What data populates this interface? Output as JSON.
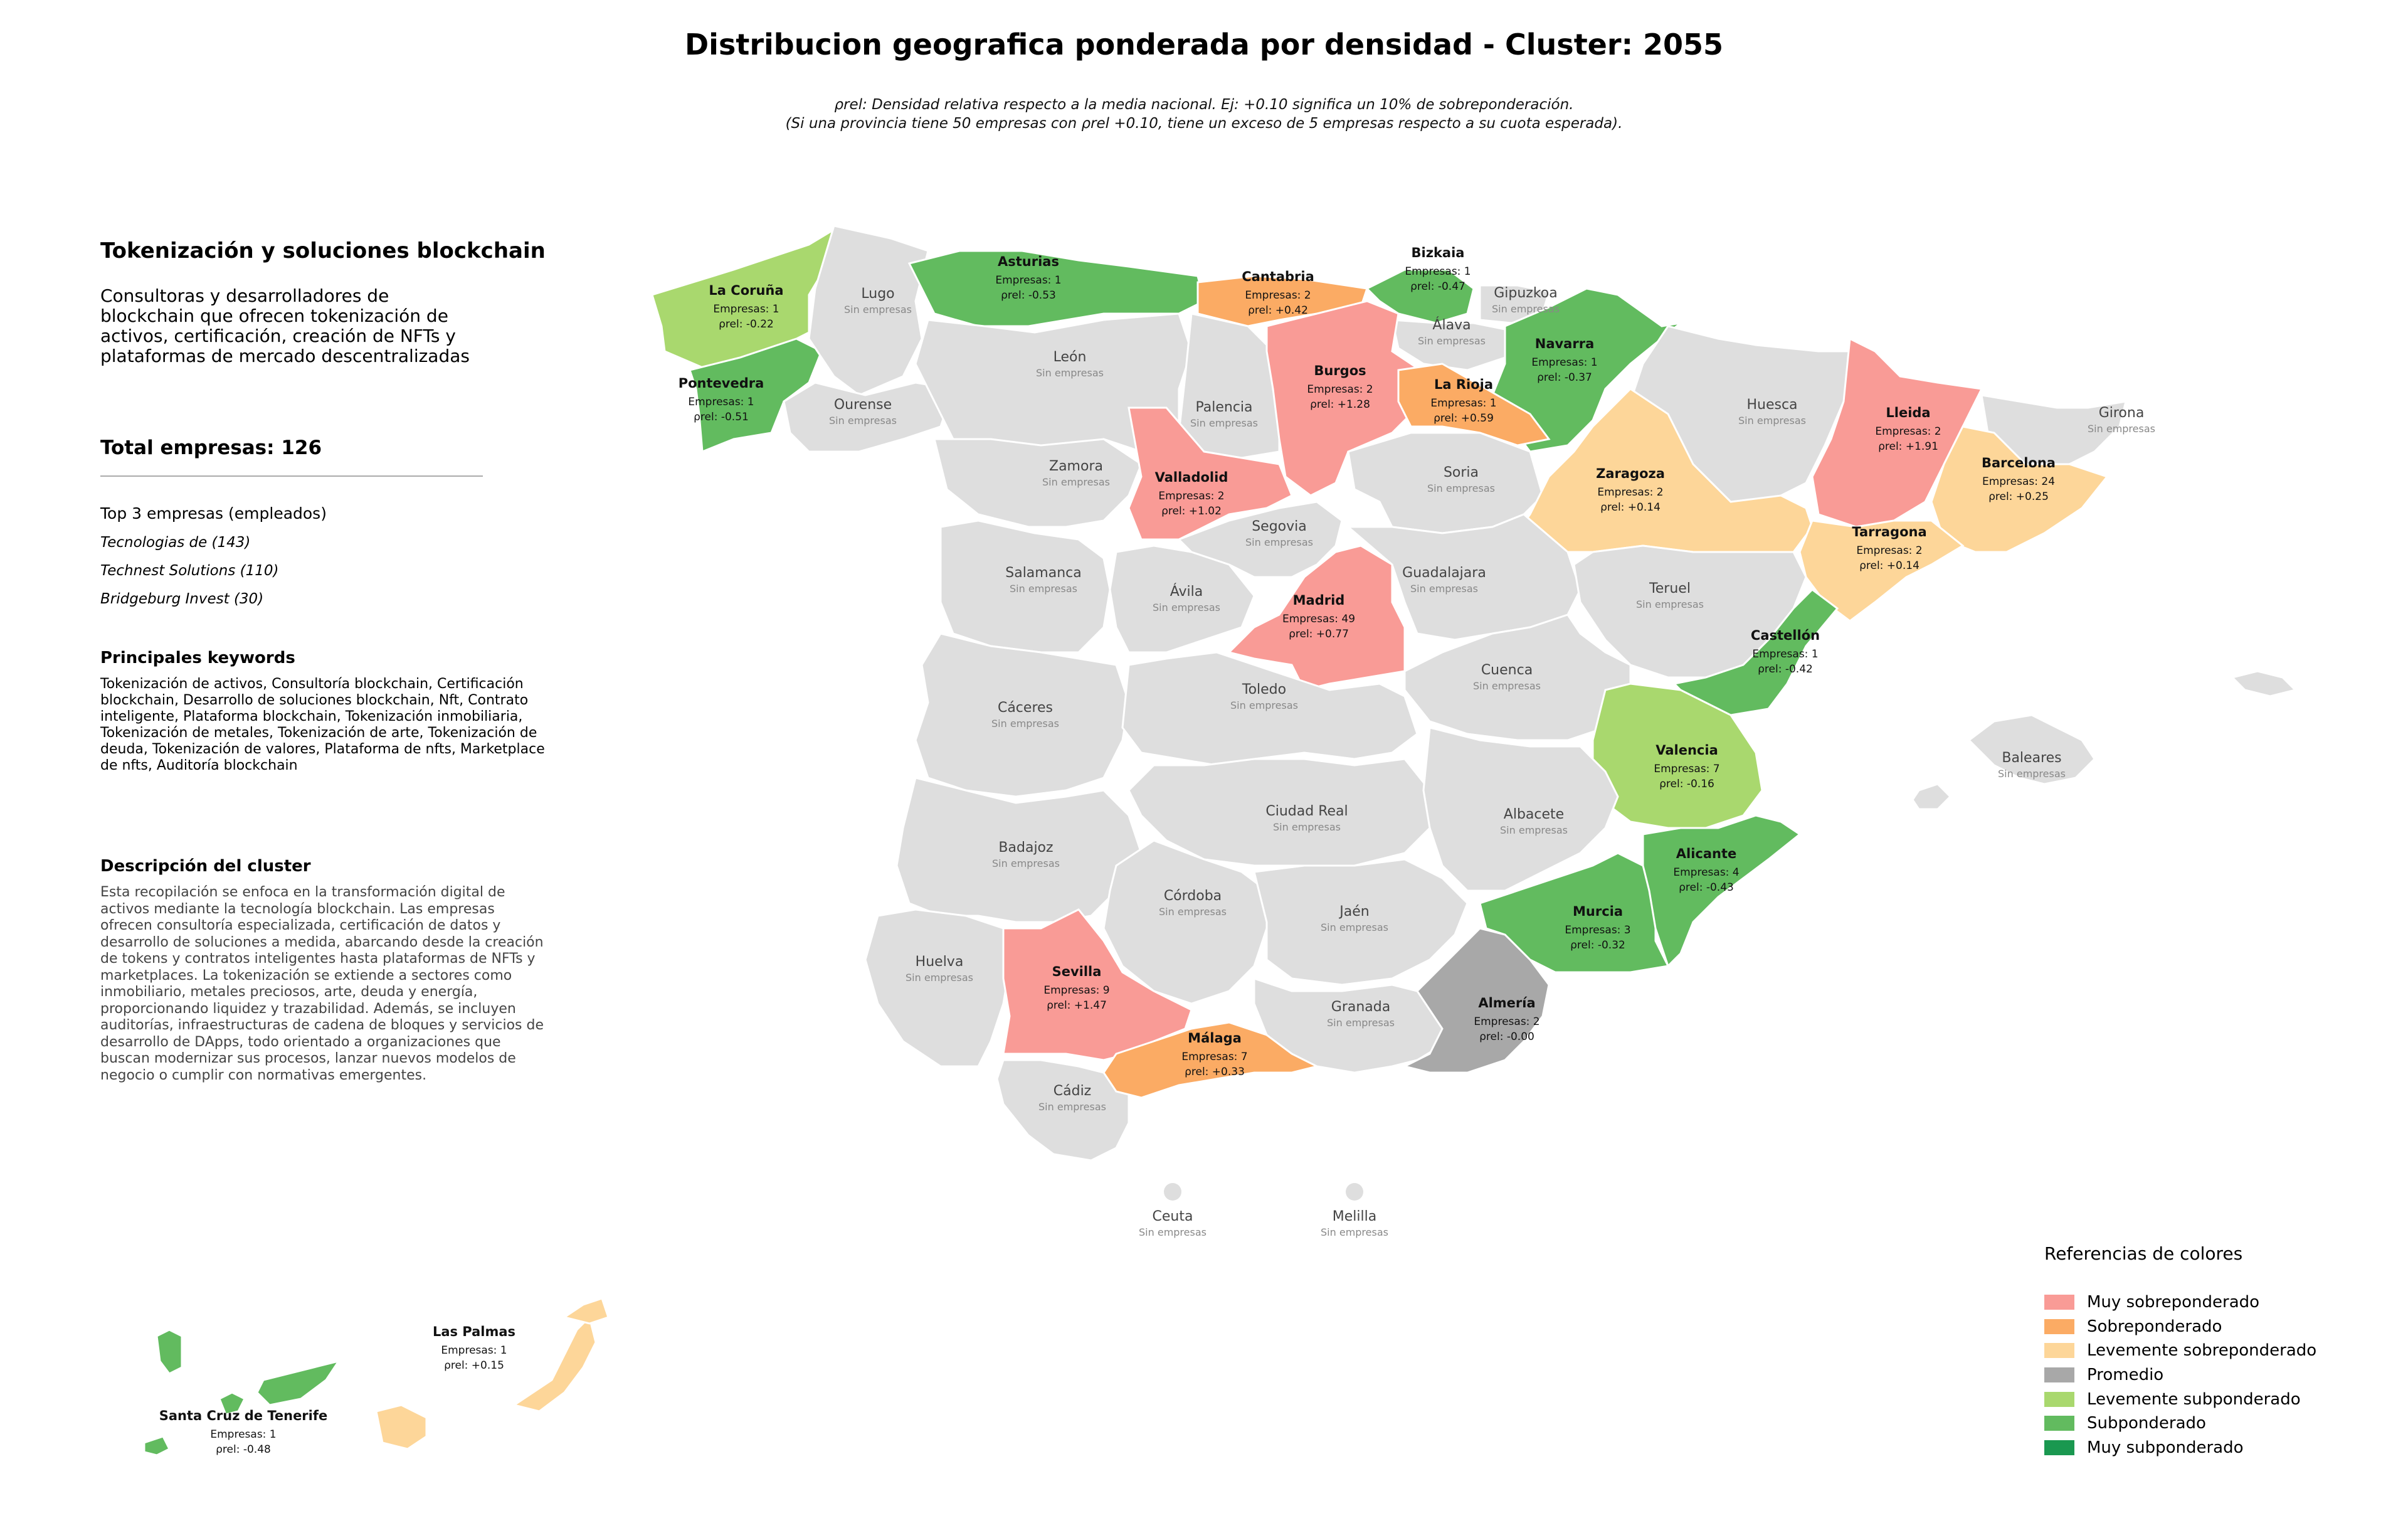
{
  "title": "Distribucion geografica ponderada por densidad - Cluster: 2055",
  "note_line1": "ρrel: Densidad relativa respecto a la media nacional. Ej: +0.10 significa un 10% de sobreponderación.",
  "note_line2": "(Si una provincia tiene 50 empresas con ρrel +0.10, tiene un exceso de 5 empresas respecto a su cuota esperada).",
  "sidebar": {
    "heading": "Tokenización y soluciones blockchain",
    "description": "Consultoras y desarrolladores de blockchain que ofrecen tokenización de activos, certificación, creación de NFTs y plataformas de mercado descentralizadas",
    "total": "Total empresas: 126",
    "top_label": "Top 3 empresas (empleados)",
    "top_companies": [
      "Tecnologias de (143)",
      "Technest Solutions (110)",
      "Bridgeburg Invest (30)"
    ],
    "keywords_title": "Principales keywords",
    "keywords": "Tokenización de activos, Consultoría blockchain, Certificación blockchain, Desarrollo de soluciones blockchain, Nft, Contrato inteligente, Plataforma blockchain, Tokenización inmobiliaria, Tokenización de metales, Tokenización de arte, Tokenización de deuda, Tokenización de valores, Plataforma de nfts, Marketplace de nfts, Auditoría blockchain",
    "desc_title": "Descripción del cluster",
    "desc_text": "Esta recopilación se enfoca en la transformación digital de activos mediante la tecnología blockchain. Las empresas ofrecen consultoría especializada, certificación de datos y desarrollo de soluciones a medida, abarcando desde la creación de tokens y contratos inteligentes hasta plataformas de NFTs y marketplaces. La tokenización se extiende a sectores como inmobiliario, metales preciosos, arte, deuda y energía, proporcionando liquidez y trazabilidad. Además, se incluyen auditorías, infraestructuras de cadena de bloques y servicios de desarrollo de DApps, todo orientado a organizaciones que buscan modernizar sus procesos, lanzar nuevos modelos de negocio o cumplir con normativas emergentes."
  },
  "empty_label": "Sin empresas",
  "empty_provinces": [
    "Lugo",
    "Ourense",
    "León",
    "Palencia",
    "Zamora",
    "Gipuzkoa",
    "Álava",
    "Huesca",
    "Girona",
    "Soria",
    "Segovia",
    "Salamanca",
    "Ávila",
    "Guadalajara",
    "Teruel",
    "Cuenca",
    "Cáceres",
    "Toledo",
    "Baleares",
    "Ciudad Real",
    "Albacete",
    "Badajoz",
    "Córdoba",
    "Jaén",
    "Huelva",
    "Granada",
    "Cádiz",
    "Ceuta",
    "Melilla"
  ],
  "highlighted": [
    {
      "name": "La Coruña",
      "count": "Empresas: 1",
      "rho": "ρrel: -0.22",
      "category": "Levemente subponderado"
    },
    {
      "name": "Pontevedra",
      "count": "Empresas: 1",
      "rho": "ρrel: -0.51",
      "category": "Subponderado"
    },
    {
      "name": "Asturias",
      "count": "Empresas: 1",
      "rho": "ρrel: -0.53",
      "category": "Subponderado"
    },
    {
      "name": "Cantabria",
      "count": "Empresas: 2",
      "rho": "ρrel: +0.42",
      "category": "Sobreponderado"
    },
    {
      "name": "Bizkaia",
      "count": "Empresas: 1",
      "rho": "ρrel: -0.47",
      "category": "Subponderado"
    },
    {
      "name": "Navarra",
      "count": "Empresas: 1",
      "rho": "ρrel: -0.37",
      "category": "Subponderado"
    },
    {
      "name": "Burgos",
      "count": "Empresas: 2",
      "rho": "ρrel: +1.28",
      "category": "Muy sobreponderado"
    },
    {
      "name": "La Rioja",
      "count": "Empresas: 1",
      "rho": "ρrel: +0.59",
      "category": "Sobreponderado"
    },
    {
      "name": "Valladolid",
      "count": "Empresas: 2",
      "rho": "ρrel: +1.02",
      "category": "Muy sobreponderado"
    },
    {
      "name": "Lleida",
      "count": "Empresas: 2",
      "rho": "ρrel: +1.91",
      "category": "Muy sobreponderado"
    },
    {
      "name": "Barcelona",
      "count": "Empresas: 24",
      "rho": "ρrel: +0.25",
      "category": "Levemente sobreponderado"
    },
    {
      "name": "Zaragoza",
      "count": "Empresas: 2",
      "rho": "ρrel: +0.14",
      "category": "Levemente sobreponderado"
    },
    {
      "name": "Tarragona",
      "count": "Empresas: 2",
      "rho": "ρrel: +0.14",
      "category": "Levemente sobreponderado"
    },
    {
      "name": "Madrid",
      "count": "Empresas: 49",
      "rho": "ρrel: +0.77",
      "category": "Muy sobreponderado"
    },
    {
      "name": "Castellón",
      "count": "Empresas: 1",
      "rho": "ρrel: -0.42",
      "category": "Subponderado"
    },
    {
      "name": "Valencia",
      "count": "Empresas: 7",
      "rho": "ρrel: -0.16",
      "category": "Levemente subponderado"
    },
    {
      "name": "Alicante",
      "count": "Empresas: 4",
      "rho": "ρrel: -0.43",
      "category": "Subponderado"
    },
    {
      "name": "Murcia",
      "count": "Empresas: 3",
      "rho": "ρrel: -0.32",
      "category": "Subponderado"
    },
    {
      "name": "Almería",
      "count": "Empresas: 2",
      "rho": "ρrel: -0.00",
      "category": "Promedio"
    },
    {
      "name": "Sevilla",
      "count": "Empresas: 9",
      "rho": "ρrel: +1.47",
      "category": "Muy sobreponderado"
    },
    {
      "name": "Málaga",
      "count": "Empresas: 7",
      "rho": "ρrel: +0.33",
      "category": "Sobreponderado"
    },
    {
      "name": "Las Palmas",
      "count": "Empresas: 1",
      "rho": "ρrel: +0.15",
      "category": "Levemente sobreponderado"
    },
    {
      "name": "Santa Cruz de Tenerife",
      "count": "Empresas: 1",
      "rho": "ρrel: -0.48",
      "category": "Subponderado"
    }
  ],
  "legend": {
    "title": "Referencias de colores",
    "items": [
      {
        "label": "Muy sobreponderado",
        "color": "#f99b96"
      },
      {
        "label": "Sobreponderado",
        "color": "#fbab64"
      },
      {
        "label": "Levemente sobreponderado",
        "color": "#fdd699"
      },
      {
        "label": "Promedio",
        "color": "#a8a8a8"
      },
      {
        "label": "Levemente subponderado",
        "color": "#a9d86e"
      },
      {
        "label": "Subponderado",
        "color": "#62bb5f"
      },
      {
        "label": "Muy subponderado",
        "color": "#1a9850"
      }
    ]
  },
  "empty_color": "#dedede"
}
